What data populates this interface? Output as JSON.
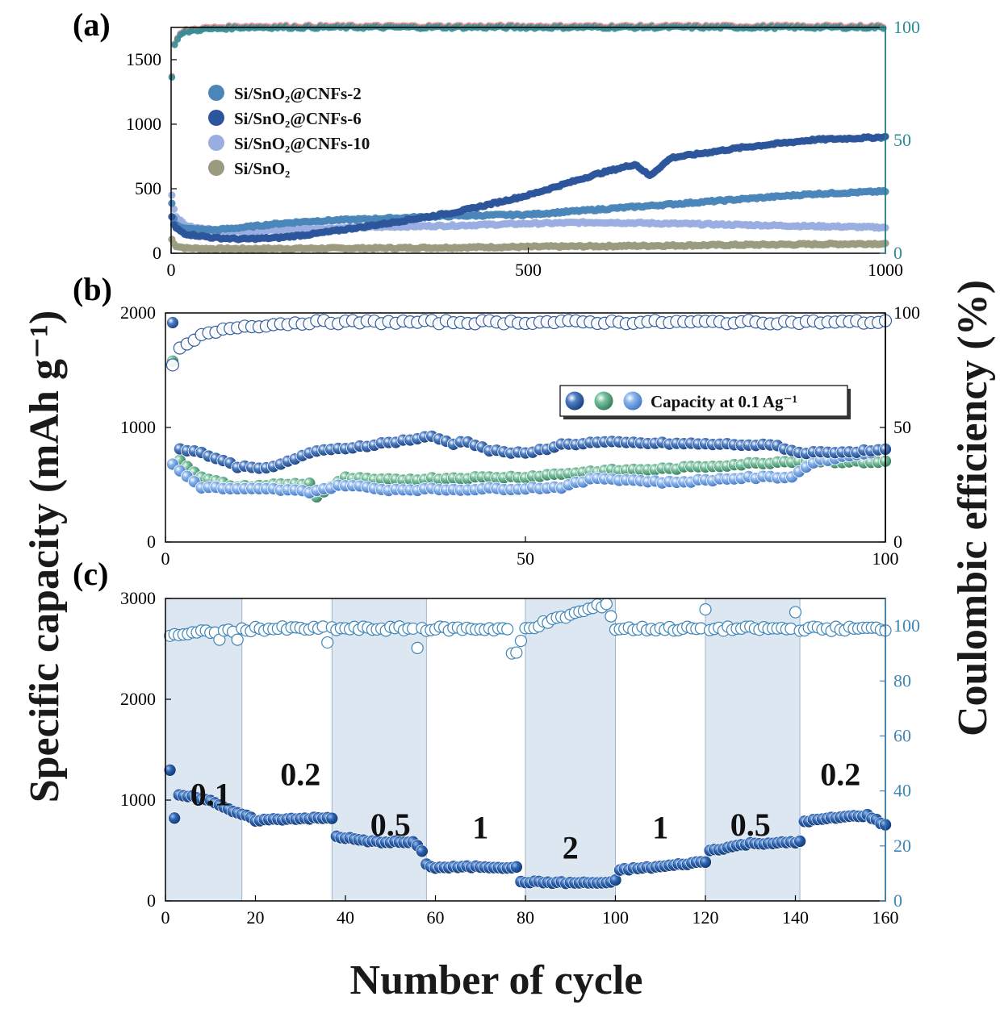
{
  "labels": {
    "panel_a": "(a)",
    "panel_b": "(b)",
    "panel_c": "(c)",
    "ylabel_left": "Specific capacity (mAh g⁻¹)",
    "ylabel_right": "Coulombic efficiency (%)",
    "xlabel": "Number of cycle"
  },
  "colors": {
    "cnfs2": "#4a86b8",
    "cnfs6": "#2c559c",
    "cnfs10": "#9aaee0",
    "sisno2": "#9b9b80",
    "ce_red": "#e88a8a",
    "ce_teal": "#2b8b94",
    "b_dark": "#1f4e96",
    "b_green": "#4c9a78",
    "b_light": "#5b8fd8",
    "c_fill": "#1f4e96",
    "c_ce": "#3f86b8",
    "shade": "#dce7f2",
    "right_axis_a": "#2b8b94",
    "right_axis_c": "#3f86b8"
  },
  "chart_data": [
    {
      "id": "a",
      "type": "scatter",
      "title": "(a)",
      "xlim": [
        0,
        1000
      ],
      "ylim_left": [
        0,
        1750
      ],
      "ylim_right": [
        0,
        100
      ],
      "xticks": [
        0,
        500,
        1000
      ],
      "yticks_left": [
        0,
        500,
        1000,
        1500
      ],
      "yticks_right": [
        0,
        50,
        100
      ],
      "legend": [
        "Si/SnO₂@CNFs-2",
        "Si/SnO₂@CNFs-6",
        "Si/SnO₂@CNFs-10",
        "Si/SnO₂"
      ],
      "legend_position": "upper-left",
      "series": [
        {
          "name": "Si/SnO₂@CNFs-2",
          "axis": "left",
          "color_key": "cnfs2",
          "x": [
            0,
            5,
            20,
            60,
            100,
            150,
            200,
            300,
            400,
            500,
            600,
            700,
            800,
            900,
            1000
          ],
          "y": [
            420,
            230,
            190,
            180,
            200,
            230,
            250,
            270,
            290,
            300,
            340,
            380,
            420,
            460,
            480
          ]
        },
        {
          "name": "Si/SnO₂@CNFs-6",
          "axis": "left",
          "color_key": "cnfs6",
          "x": [
            0,
            5,
            20,
            60,
            100,
            150,
            200,
            300,
            400,
            500,
            600,
            650,
            670,
            700,
            800,
            900,
            1000
          ],
          "y": [
            300,
            200,
            150,
            120,
            110,
            120,
            150,
            230,
            320,
            450,
            620,
            690,
            600,
            740,
            820,
            880,
            900
          ]
        },
        {
          "name": "Si/SnO₂@CNFs-10",
          "axis": "left",
          "color_key": "cnfs10",
          "x": [
            0,
            5,
            20,
            60,
            100,
            200,
            300,
            400,
            500,
            600,
            700,
            800,
            900,
            1000
          ],
          "y": [
            480,
            300,
            210,
            180,
            170,
            190,
            205,
            215,
            230,
            240,
            230,
            220,
            210,
            200
          ]
        },
        {
          "name": "Si/SnO₂",
          "axis": "left",
          "color_key": "sisno2",
          "x": [
            0,
            5,
            20,
            60,
            100,
            300,
            500,
            700,
            900,
            1000
          ],
          "y": [
            120,
            60,
            40,
            35,
            35,
            40,
            50,
            60,
            70,
            75
          ]
        },
        {
          "name": "CE",
          "axis": "right",
          "color_key": "ce_teal",
          "x": [
            0,
            5,
            10,
            20,
            40,
            100,
            500,
            1000
          ],
          "y": [
            75,
            92,
            96,
            98,
            99,
            100,
            100,
            100
          ]
        }
      ]
    },
    {
      "id": "b",
      "type": "scatter",
      "title": "(b)",
      "xlim": [
        0,
        100
      ],
      "ylim_left": [
        0,
        2000
      ],
      "ylim_right": [
        0,
        100
      ],
      "xticks": [
        0,
        50,
        100
      ],
      "yticks_left": [
        0,
        1000,
        2000
      ],
      "yticks_right": [
        0,
        50,
        100
      ],
      "legend": [
        "Capacity at 0.1 Ag⁻¹"
      ],
      "legend_position": "center-right",
      "series": [
        {
          "name": "dark",
          "axis": "left",
          "color_key": "b_dark",
          "x": [
            1,
            2,
            5,
            10,
            15,
            20,
            30,
            37,
            40,
            42,
            45,
            50,
            55,
            60,
            70,
            80,
            85,
            88,
            95,
            100
          ],
          "y": [
            1920,
            820,
            780,
            660,
            650,
            780,
            860,
            920,
            860,
            880,
            800,
            770,
            850,
            870,
            860,
            850,
            840,
            780,
            790,
            800
          ]
        },
        {
          "name": "green",
          "axis": "left",
          "color_key": "b_green",
          "x": [
            1,
            2,
            5,
            10,
            15,
            20,
            21,
            25,
            30,
            40,
            50,
            60,
            70,
            80,
            88,
            95,
            100
          ],
          "y": [
            1580,
            720,
            560,
            480,
            500,
            510,
            400,
            560,
            540,
            560,
            570,
            620,
            640,
            680,
            710,
            700,
            700
          ]
        },
        {
          "name": "light",
          "axis": "left",
          "color_key": "b_light",
          "x": [
            1,
            2,
            5,
            10,
            15,
            20,
            25,
            30,
            40,
            50,
            55,
            60,
            70,
            80,
            87,
            90,
            100
          ],
          "y": [
            680,
            620,
            480,
            460,
            460,
            440,
            500,
            460,
            460,
            470,
            480,
            560,
            520,
            560,
            570,
            700,
            810
          ]
        },
        {
          "name": "CE",
          "axis": "right",
          "color_key": "b_dark",
          "x": [
            1,
            2,
            5,
            10,
            20,
            30,
            50,
            70,
            100
          ],
          "y": [
            78,
            84,
            90,
            94,
            96,
            96,
            96,
            96,
            96
          ]
        }
      ]
    },
    {
      "id": "c",
      "type": "scatter",
      "title": "(c)",
      "xlim": [
        0,
        160
      ],
      "ylim_left": [
        0,
        3000
      ],
      "ylim_right": [
        0,
        110
      ],
      "xticks": [
        0,
        20,
        40,
        60,
        80,
        100,
        120,
        140,
        160
      ],
      "yticks_left": [
        0,
        1000,
        2000,
        3000
      ],
      "yticks_right": [
        0,
        20,
        40,
        60,
        80,
        100
      ],
      "rate_labels": [
        "0.1",
        "0.2",
        "0.5",
        "1",
        "2",
        "1",
        "0.5",
        "0.2"
      ],
      "shaded_ranges": [
        [
          0,
          17
        ],
        [
          37,
          58
        ],
        [
          80,
          100
        ],
        [
          120,
          141
        ]
      ],
      "series": [
        {
          "name": "capacity",
          "axis": "left",
          "color_key": "c_fill",
          "x": [
            1,
            2,
            3,
            10,
            15,
            17,
            20,
            30,
            37,
            38,
            45,
            55,
            57,
            58,
            60,
            70,
            78,
            79,
            90,
            99,
            100,
            101,
            110,
            120,
            121,
            130,
            140,
            141,
            142,
            150,
            156,
            160
          ],
          "y": [
            1300,
            820,
            1060,
            1000,
            880,
            860,
            800,
            820,
            820,
            640,
            590,
            580,
            500,
            360,
            330,
            340,
            330,
            190,
            180,
            180,
            200,
            310,
            340,
            390,
            500,
            570,
            580,
            590,
            790,
            830,
            850,
            750
          ]
        },
        {
          "name": "CE",
          "axis": "right",
          "color_key": "c_ce",
          "x": [
            1,
            5,
            10,
            20,
            37,
            40,
            55,
            60,
            77,
            78,
            80,
            98,
            100,
            120,
            140,
            160
          ],
          "y": [
            97,
            97,
            98,
            99,
            99,
            99,
            99,
            99,
            99,
            90,
            99,
            108,
            99,
            99,
            99,
            99
          ]
        }
      ]
    }
  ]
}
